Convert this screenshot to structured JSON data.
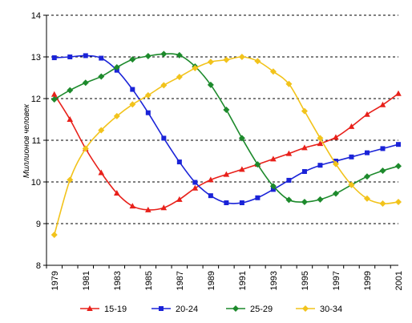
{
  "chart_data": {
    "type": "line",
    "title": "",
    "xlabel": "",
    "ylabel": "Миллионов человек",
    "x": [
      1979,
      1980,
      1981,
      1982,
      1983,
      1984,
      1985,
      1986,
      1987,
      1988,
      1989,
      1990,
      1991,
      1992,
      1993,
      1994,
      1995,
      1996,
      1997,
      1998,
      1999,
      2000,
      2001
    ],
    "x_tick_labels": [
      "1979",
      "1981",
      "1983",
      "1985",
      "1987",
      "1989",
      "1991",
      "1993",
      "1995",
      "1997",
      "1999",
      "2001"
    ],
    "y_tick_labels": [
      "8",
      "9",
      "10",
      "11",
      "12",
      "13",
      "14"
    ],
    "ylim": [
      8,
      14
    ],
    "grid": "horizontal dashed",
    "legend_position": "bottom",
    "series": [
      {
        "name": "15-19",
        "color": "#e8201a",
        "marker": "triangle",
        "values": [
          12.1,
          11.5,
          10.8,
          10.22,
          9.73,
          9.42,
          9.33,
          9.38,
          9.58,
          9.85,
          10.05,
          10.18,
          10.3,
          10.42,
          10.55,
          10.68,
          10.82,
          10.92,
          11.07,
          11.33,
          11.62,
          11.85,
          12.12
        ]
      },
      {
        "name": "20-24",
        "color": "#1a23d8",
        "marker": "square",
        "values": [
          12.98,
          13.0,
          13.03,
          12.97,
          12.68,
          12.22,
          11.66,
          11.05,
          10.48,
          9.99,
          9.67,
          9.5,
          9.5,
          9.62,
          9.82,
          10.04,
          10.25,
          10.4,
          10.5,
          10.6,
          10.7,
          10.8,
          10.9
        ]
      },
      {
        "name": "25-29",
        "color": "#1d8a2c",
        "marker": "diamond",
        "values": [
          11.98,
          12.2,
          12.38,
          12.53,
          12.75,
          12.94,
          13.02,
          13.07,
          13.04,
          12.77,
          12.33,
          11.73,
          11.05,
          10.42,
          9.9,
          9.57,
          9.52,
          9.58,
          9.72,
          9.93,
          10.13,
          10.27,
          10.38
        ]
      },
      {
        "name": "30-34",
        "color": "#f2c31b",
        "marker": "diamond",
        "values": [
          8.73,
          10.05,
          10.8,
          11.24,
          11.58,
          11.86,
          12.08,
          12.32,
          12.52,
          12.73,
          12.88,
          12.93,
          13.0,
          12.9,
          12.65,
          12.35,
          11.7,
          11.05,
          10.43,
          9.93,
          9.6,
          9.48,
          9.52
        ]
      }
    ]
  }
}
